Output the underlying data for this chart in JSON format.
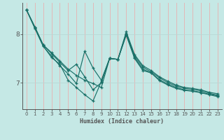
{
  "xlabel": "Humidex (Indice chaleur)",
  "bg_color": "#c5e8e5",
  "line_color": "#1a7068",
  "grid_color_v": "#e8b0b0",
  "grid_color_h": "#b8d8d5",
  "axis_color": "#555555",
  "xlim": [
    -0.5,
    23.5
  ],
  "ylim": [
    6.45,
    8.65
  ],
  "yticks": [
    7,
    8
  ],
  "xticks": [
    0,
    1,
    2,
    3,
    4,
    5,
    6,
    7,
    8,
    9,
    10,
    11,
    12,
    13,
    14,
    15,
    16,
    17,
    18,
    19,
    20,
    21,
    22,
    23
  ],
  "series": [
    [
      8.5,
      8.15,
      7.78,
      7.62,
      7.45,
      7.28,
      7.15,
      7.05,
      6.98,
      6.9,
      7.5,
      7.48,
      8.05,
      7.58,
      7.35,
      7.25,
      7.12,
      7.03,
      6.95,
      6.9,
      6.88,
      6.85,
      6.8,
      6.77
    ],
    [
      8.5,
      8.15,
      7.78,
      7.6,
      7.42,
      7.25,
      7.38,
      7.12,
      6.85,
      7.0,
      7.5,
      7.48,
      8.02,
      7.55,
      7.32,
      7.22,
      7.1,
      7.0,
      6.93,
      6.88,
      6.86,
      6.83,
      6.78,
      6.74
    ],
    [
      8.5,
      8.12,
      7.75,
      7.55,
      7.35,
      7.18,
      6.98,
      7.65,
      7.3,
      7.05,
      7.5,
      7.48,
      8.0,
      7.52,
      7.28,
      7.2,
      7.06,
      6.97,
      6.9,
      6.85,
      6.83,
      6.8,
      6.76,
      6.73
    ],
    [
      8.5,
      8.13,
      7.76,
      7.52,
      7.38,
      7.05,
      6.9,
      6.75,
      6.62,
      7.02,
      7.5,
      7.48,
      7.98,
      7.5,
      7.25,
      7.2,
      7.04,
      6.95,
      6.88,
      6.84,
      6.82,
      6.79,
      6.75,
      6.71
    ]
  ]
}
